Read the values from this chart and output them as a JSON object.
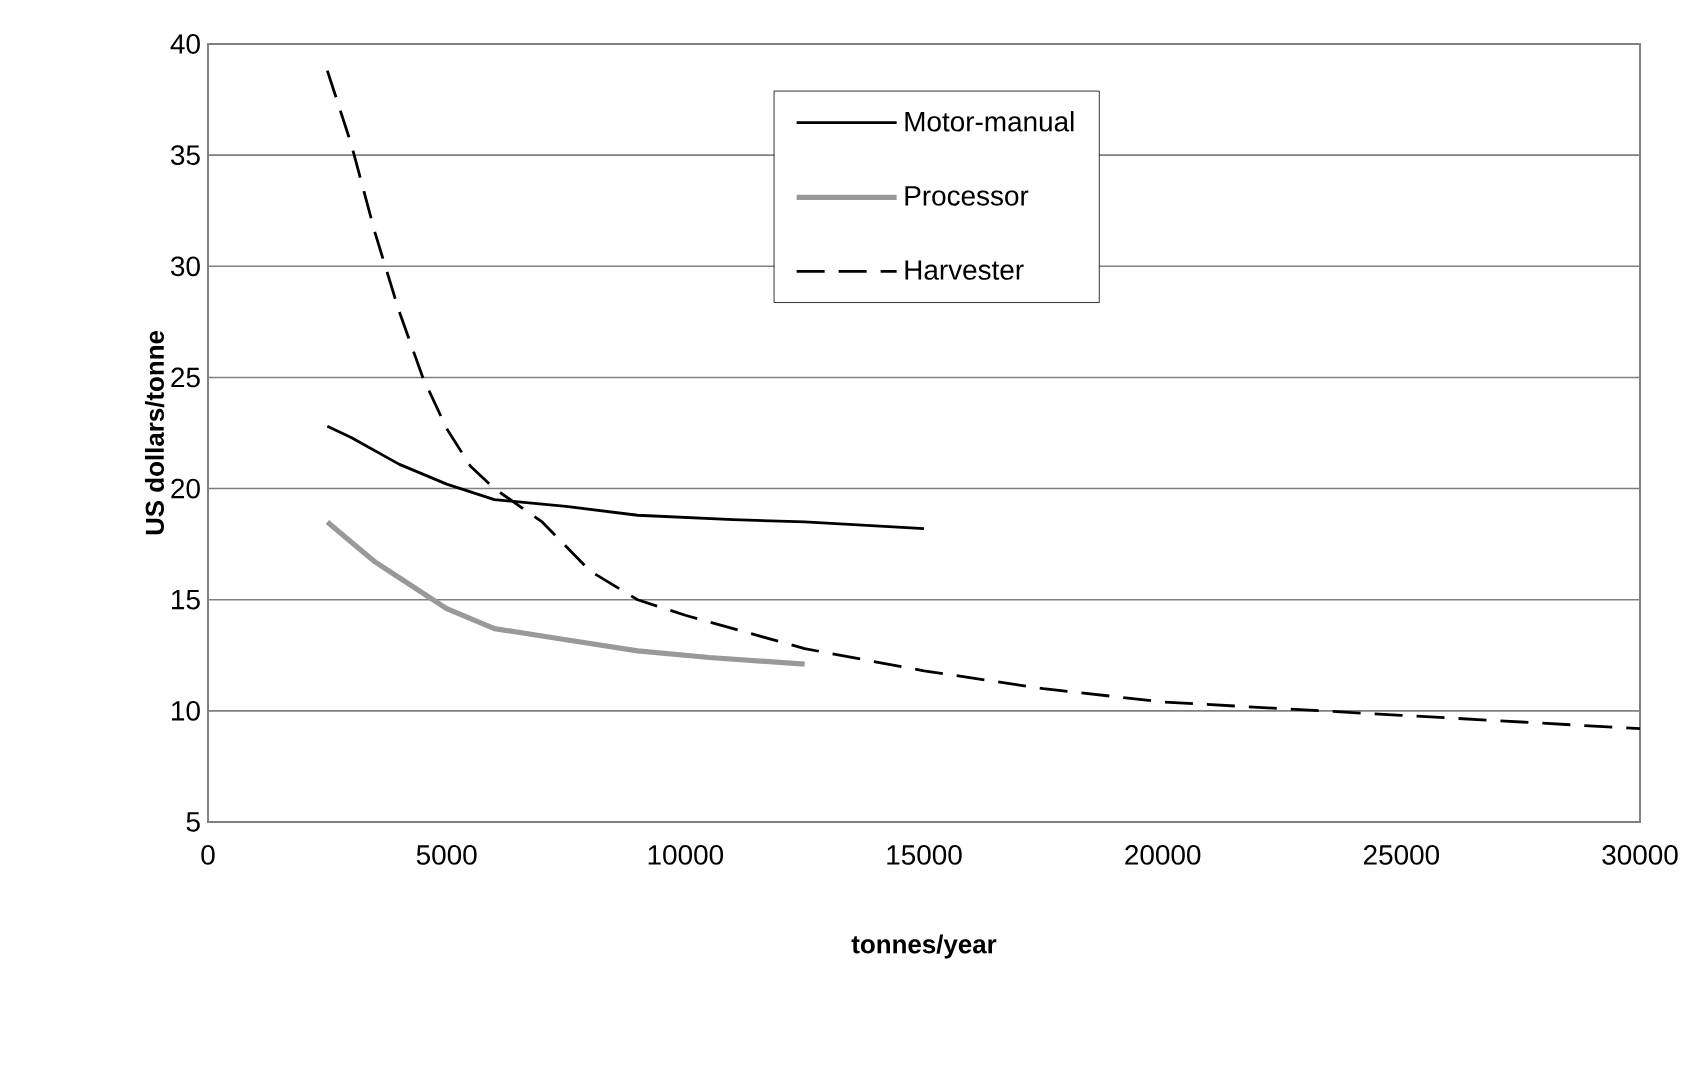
{
  "chart_data": {
    "type": "line",
    "xlabel": "tonnes/year",
    "ylabel": "US dollars/tonne",
    "xlim": [
      0,
      30000
    ],
    "ylim": [
      5,
      40
    ],
    "xticks": [
      0,
      5000,
      10000,
      15000,
      20000,
      25000,
      30000
    ],
    "yticks": [
      5,
      10,
      15,
      20,
      25,
      30,
      35,
      40
    ],
    "grid": "y",
    "legend": "top right",
    "series": [
      {
        "name": "Motor-manual",
        "color": "#000000",
        "line_style": "solid",
        "x": [
          2500,
          3000,
          3500,
          4000,
          5000,
          6000,
          7500,
          9000,
          11000,
          12500,
          15000
        ],
        "values": [
          22.8,
          22.3,
          21.7,
          21.1,
          20.2,
          19.5,
          19.2,
          18.8,
          18.6,
          18.5,
          18.2
        ]
      },
      {
        "name": "Processor",
        "color": "#999999",
        "line_style": "solid",
        "x": [
          2500,
          3000,
          3500,
          4000,
          5000,
          6000,
          7500,
          9000,
          10500,
          12500
        ],
        "values": [
          18.5,
          17.6,
          16.7,
          16.0,
          14.6,
          13.7,
          13.2,
          12.7,
          12.4,
          12.1
        ]
      },
      {
        "name": "Harvester",
        "color": "#000000",
        "line_style": "dashed",
        "x": [
          2500,
          3000,
          3500,
          4000,
          4500,
          5000,
          5500,
          6000,
          7000,
          8000,
          9000,
          10000,
          12500,
          15000,
          17500,
          20000,
          25000,
          30000
        ],
        "values": [
          38.8,
          35.5,
          31.5,
          28.0,
          25.0,
          22.7,
          21.0,
          20.0,
          18.5,
          16.3,
          15.0,
          14.3,
          12.8,
          11.8,
          11.0,
          10.4,
          9.8,
          9.2
        ]
      }
    ]
  }
}
